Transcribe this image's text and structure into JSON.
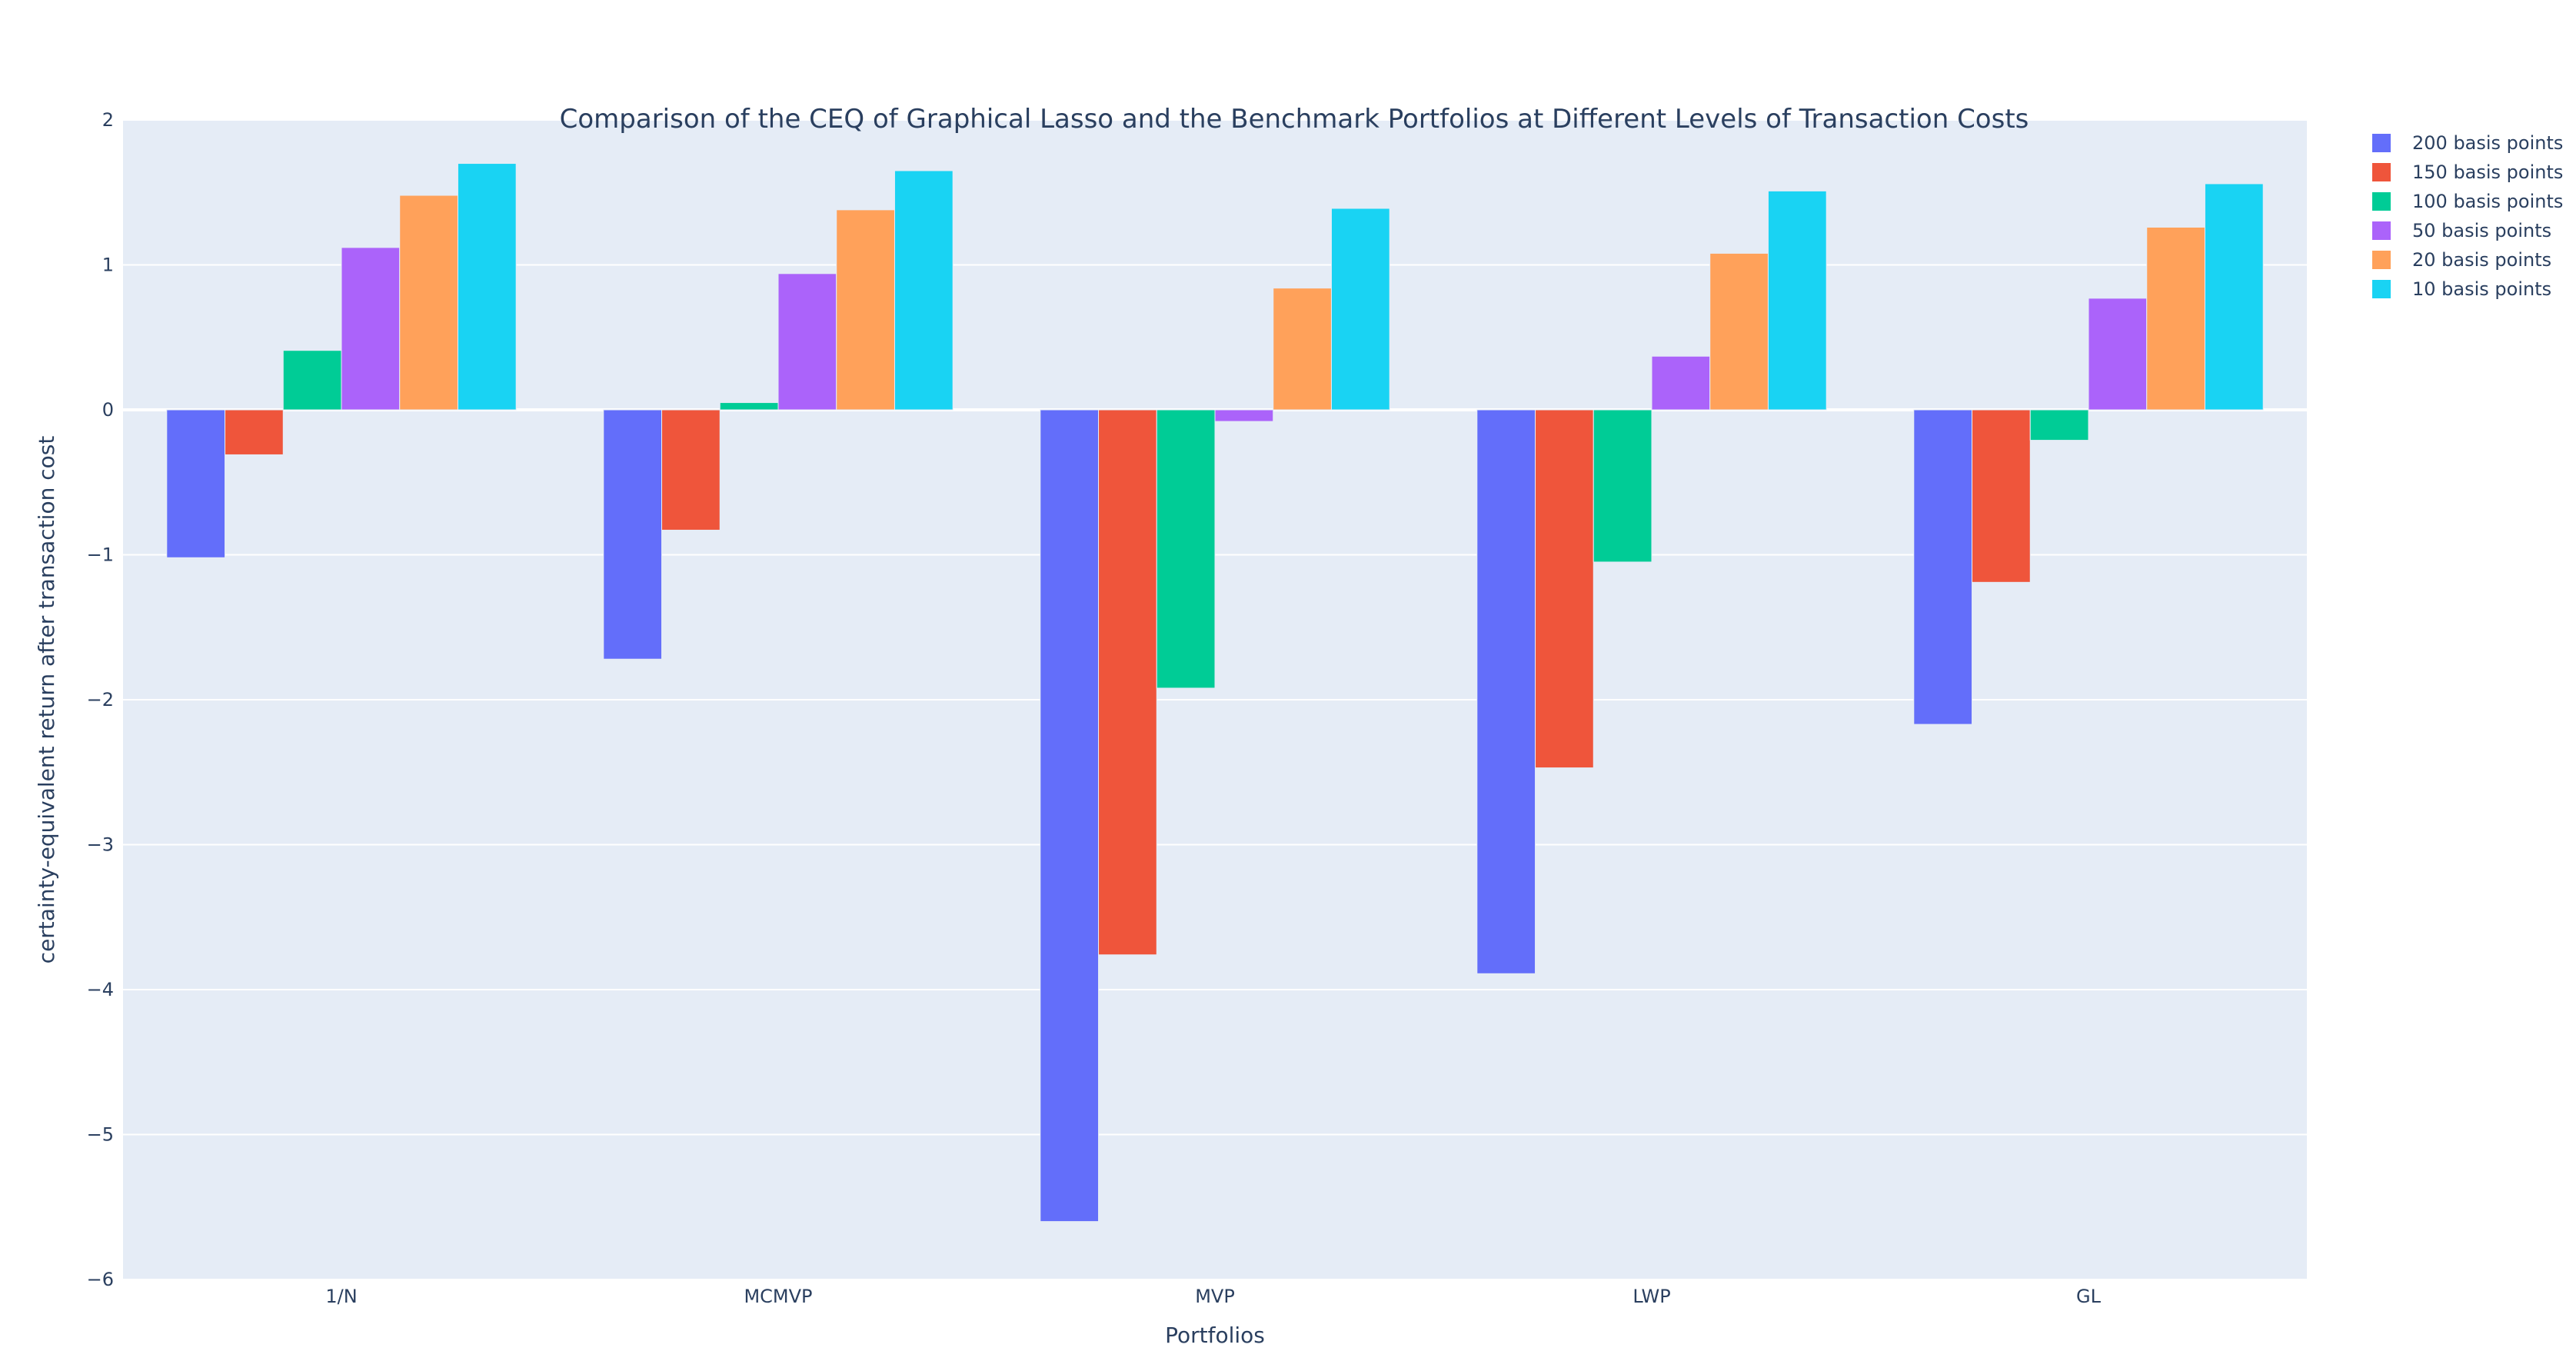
{
  "chart_data": {
    "type": "bar",
    "title": "Comparison of the CEQ of Graphical Lasso and the Benchmark Portfolios at Different Levels of Transaction Costs",
    "xlabel": "Portfolios",
    "ylabel": "certainty-equivalent return after transaction cost",
    "categories": [
      "1/N",
      "MCMVP",
      "MVP",
      "LWP",
      "GL"
    ],
    "ylim": [
      -6,
      2
    ],
    "yticks": [
      2,
      1,
      0,
      -1,
      -2,
      -3,
      -4,
      -5,
      -6
    ],
    "ytick_labels": [
      "2",
      "1",
      "0",
      "−1",
      "−2",
      "−3",
      "−4",
      "−5",
      "−6"
    ],
    "grid": true,
    "legend_position": "top-right",
    "series": [
      {
        "name": "200 basis points",
        "color": "#636efa",
        "values": [
          -1.02,
          -1.72,
          -5.6,
          -3.89,
          -2.17
        ]
      },
      {
        "name": "150 basis points",
        "color": "#ef553b",
        "values": [
          -0.31,
          -0.83,
          -3.76,
          -2.47,
          -1.19
        ]
      },
      {
        "name": "100 basis points",
        "color": "#00cc96",
        "values": [
          0.41,
          0.05,
          -1.92,
          -1.05,
          -0.21
        ]
      },
      {
        "name": "50 basis points",
        "color": "#ab63fa",
        "values": [
          1.12,
          0.94,
          -0.08,
          0.37,
          0.77
        ]
      },
      {
        "name": "20 basis points",
        "color": "#ffa15a",
        "values": [
          1.48,
          1.38,
          0.84,
          1.08,
          1.26
        ]
      },
      {
        "name": "10 basis points",
        "color": "#19d3f3",
        "values": [
          1.7,
          1.65,
          1.39,
          1.51,
          1.56
        ]
      }
    ]
  }
}
